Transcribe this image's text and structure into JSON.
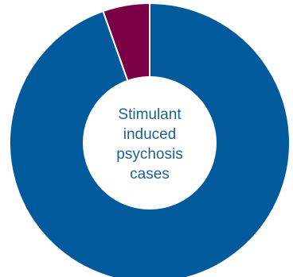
{
  "chart_data": {
    "type": "pie",
    "variant": "donut",
    "slices": [
      {
        "value": 94.6,
        "color": "#005a9c"
      },
      {
        "value": 5.4,
        "color": "#7a0046"
      }
    ],
    "center_label": [
      "Stimulant",
      "induced",
      "psychosis",
      "cases"
    ]
  }
}
